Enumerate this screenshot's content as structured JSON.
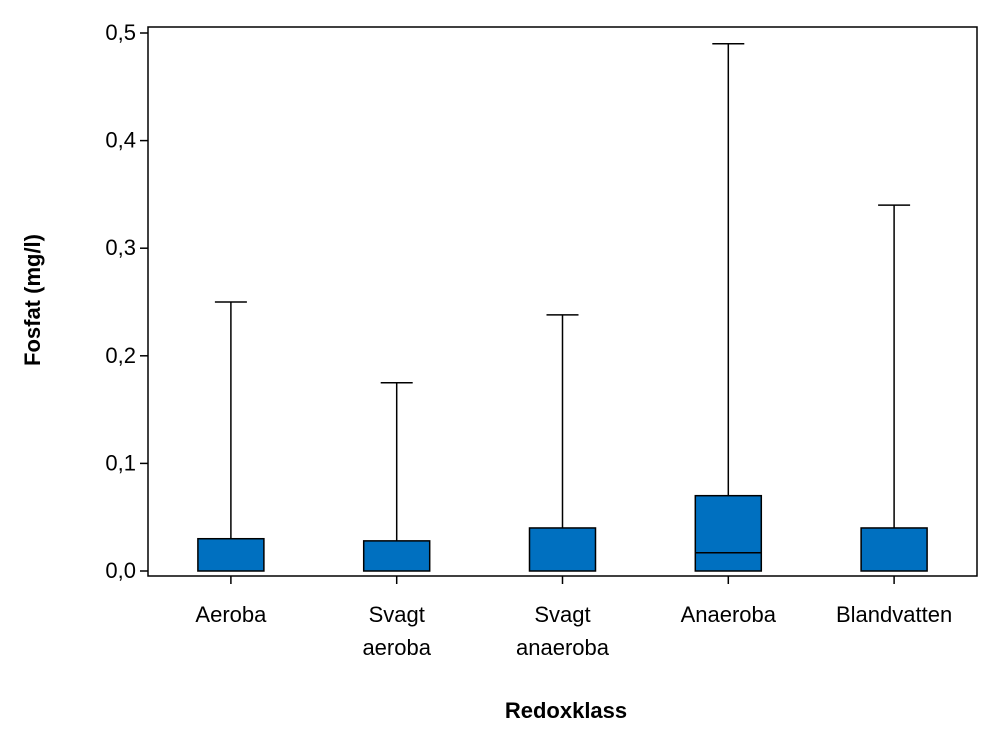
{
  "chart_data": {
    "type": "boxplot",
    "title": "",
    "xlabel": "Redoxklass",
    "ylabel": "Fosfat (mg/l)",
    "ylim": [
      0,
      0.5
    ],
    "y_ticks": [
      {
        "value": 0.0,
        "label": "0,0"
      },
      {
        "value": 0.1,
        "label": "0,1"
      },
      {
        "value": 0.2,
        "label": "0,2"
      },
      {
        "value": 0.3,
        "label": "0,3"
      },
      {
        "value": 0.4,
        "label": "0,4"
      },
      {
        "value": 0.5,
        "label": "0,5"
      }
    ],
    "grid": false,
    "box_color": "#0070C0",
    "categories": [
      {
        "label_lines": [
          "Aeroba"
        ],
        "min": 0.0,
        "q1": 0.0,
        "median": 0.0,
        "q3": 0.03,
        "max": 0.25
      },
      {
        "label_lines": [
          "Svagt",
          "aeroba"
        ],
        "min": 0.0,
        "q1": 0.0,
        "median": 0.0,
        "q3": 0.028,
        "max": 0.175
      },
      {
        "label_lines": [
          "Svagt",
          "anaeroba"
        ],
        "min": 0.0,
        "q1": 0.0,
        "median": 0.0,
        "q3": 0.04,
        "max": 0.238
      },
      {
        "label_lines": [
          "Anaeroba"
        ],
        "min": 0.0,
        "q1": 0.0,
        "median": 0.017,
        "q3": 0.07,
        "max": 0.49
      },
      {
        "label_lines": [
          "Blandvatten"
        ],
        "min": 0.0,
        "q1": 0.0,
        "median": 0.0,
        "q3": 0.04,
        "max": 0.34
      }
    ]
  }
}
